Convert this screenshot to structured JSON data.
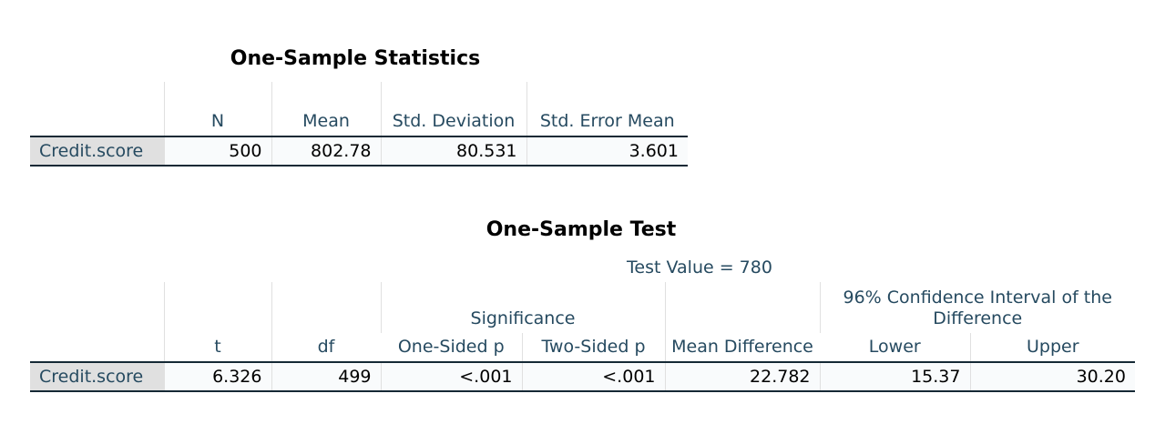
{
  "statistics": {
    "title": "One-Sample Statistics",
    "headers": [
      "N",
      "Mean",
      "Std. Deviation",
      "Std. Error Mean"
    ],
    "rows": [
      {
        "label": "Credit.score",
        "values": [
          "500",
          "802.78",
          "80.531",
          "3.601"
        ]
      }
    ]
  },
  "test": {
    "title": "One-Sample Test",
    "test_value": "Test Value = 780",
    "headers": {
      "t": "t",
      "df": "df",
      "significance": "Significance",
      "one_sided": "One-Sided p",
      "two_sided": "Two-Sided p",
      "mean_diff": "Mean Difference",
      "ci": "96% Confidence Interval of the Difference",
      "lower": "Lower",
      "upper": "Upper"
    },
    "rows": [
      {
        "label": "Credit.score",
        "values": [
          "6.326",
          "499",
          "<.001",
          "<.001",
          "22.782",
          "15.37",
          "30.20"
        ]
      }
    ]
  }
}
